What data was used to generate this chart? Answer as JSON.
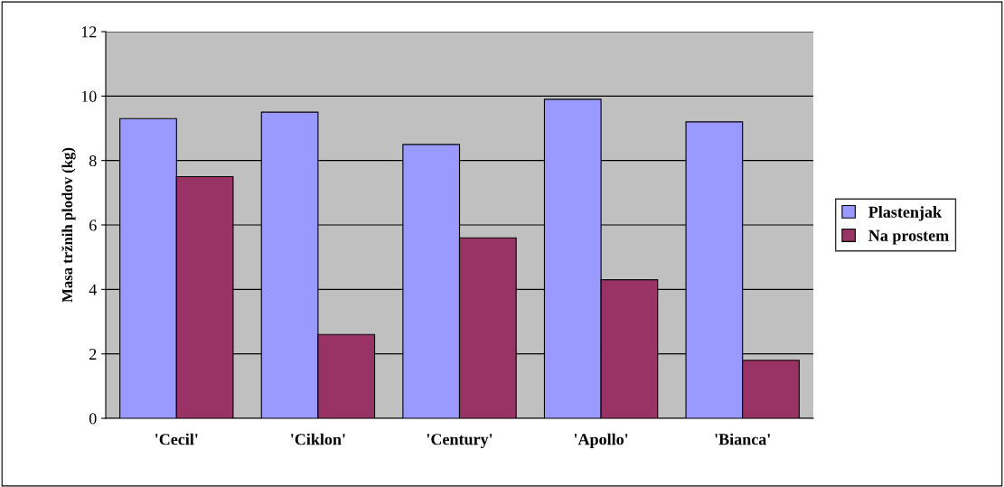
{
  "chart_data": {
    "type": "bar",
    "ylabel": "Masa tržnih plodov (kg)",
    "categories": [
      "'Cecil'",
      "'Ciklon'",
      "'Century'",
      "'Apollo'",
      "'Bianca'"
    ],
    "series": [
      {
        "name": "Plastenjak",
        "color": "#9999ff",
        "values": [
          9.3,
          9.5,
          8.5,
          9.9,
          9.2
        ]
      },
      {
        "name": "Na prostem",
        "color": "#993366",
        "values": [
          7.5,
          2.6,
          5.6,
          4.3,
          1.8
        ]
      }
    ],
    "ylim": [
      0,
      12
    ],
    "yticks": [
      0,
      2,
      4,
      6,
      8,
      10,
      12
    ],
    "grid": "y",
    "legend": "right"
  }
}
